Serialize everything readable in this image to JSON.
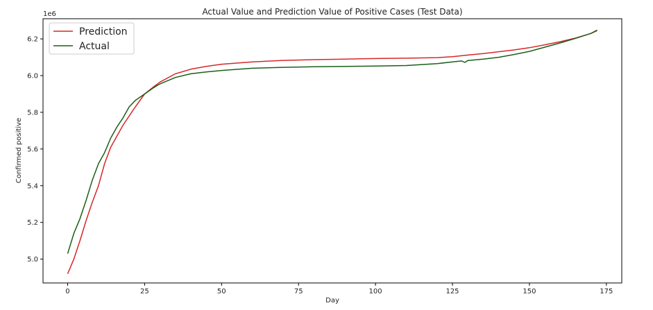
{
  "chart_data": {
    "type": "line",
    "title": "Actual Value and Prediction Value of Positive Cases (Test Data)",
    "xlabel": "Day",
    "ylabel": "Confirmed positive",
    "y_offset_text": "1e6",
    "xlim": [
      -8,
      180
    ],
    "ylim": [
      4.87,
      6.31
    ],
    "x_ticks": [
      0,
      25,
      50,
      75,
      100,
      125,
      150,
      175
    ],
    "y_ticks": [
      5.0,
      5.2,
      5.4,
      5.6,
      5.8,
      6.0,
      6.2
    ],
    "x_tick_labels": [
      "0",
      "25",
      "50",
      "75",
      "100",
      "125",
      "150",
      "175"
    ],
    "y_tick_labels": [
      "5.0",
      "5.2",
      "5.4",
      "5.6",
      "5.8",
      "6.0",
      "6.2"
    ],
    "grid": false,
    "legend_position": "top-left",
    "series": [
      {
        "name": "Prediction",
        "color": "#d62728",
        "points": [
          [
            0,
            4.92
          ],
          [
            2,
            5.0
          ],
          [
            4,
            5.1
          ],
          [
            6,
            5.21
          ],
          [
            8,
            5.31
          ],
          [
            10,
            5.4
          ],
          [
            12,
            5.52
          ],
          [
            14,
            5.61
          ],
          [
            16,
            5.67
          ],
          [
            18,
            5.73
          ],
          [
            20,
            5.78
          ],
          [
            22,
            5.83
          ],
          [
            25,
            5.9
          ],
          [
            28,
            5.94
          ],
          [
            30,
            5.965
          ],
          [
            35,
            6.01
          ],
          [
            40,
            6.035
          ],
          [
            45,
            6.05
          ],
          [
            50,
            6.062
          ],
          [
            60,
            6.075
          ],
          [
            70,
            6.083
          ],
          [
            80,
            6.087
          ],
          [
            90,
            6.09
          ],
          [
            100,
            6.093
          ],
          [
            110,
            6.095
          ],
          [
            120,
            6.098
          ],
          [
            125,
            6.103
          ],
          [
            130,
            6.112
          ],
          [
            135,
            6.12
          ],
          [
            140,
            6.13
          ],
          [
            145,
            6.14
          ],
          [
            150,
            6.152
          ],
          [
            155,
            6.168
          ],
          [
            160,
            6.185
          ],
          [
            165,
            6.205
          ],
          [
            170,
            6.23
          ],
          [
            172,
            6.245
          ]
        ]
      },
      {
        "name": "Actual",
        "color": "#1a5e1a",
        "points": [
          [
            0,
            5.03
          ],
          [
            2,
            5.14
          ],
          [
            4,
            5.22
          ],
          [
            6,
            5.32
          ],
          [
            8,
            5.43
          ],
          [
            10,
            5.52
          ],
          [
            12,
            5.58
          ],
          [
            14,
            5.66
          ],
          [
            16,
            5.72
          ],
          [
            18,
            5.77
          ],
          [
            20,
            5.83
          ],
          [
            22,
            5.865
          ],
          [
            25,
            5.9
          ],
          [
            28,
            5.935
          ],
          [
            30,
            5.955
          ],
          [
            35,
            5.99
          ],
          [
            40,
            6.01
          ],
          [
            45,
            6.02
          ],
          [
            50,
            6.028
          ],
          [
            60,
            6.04
          ],
          [
            70,
            6.045
          ],
          [
            80,
            6.048
          ],
          [
            90,
            6.05
          ],
          [
            100,
            6.052
          ],
          [
            110,
            6.055
          ],
          [
            120,
            6.065
          ],
          [
            125,
            6.075
          ],
          [
            128,
            6.08
          ],
          [
            129,
            6.072
          ],
          [
            130,
            6.082
          ],
          [
            135,
            6.09
          ],
          [
            140,
            6.1
          ],
          [
            145,
            6.115
          ],
          [
            150,
            6.132
          ],
          [
            155,
            6.155
          ],
          [
            160,
            6.178
          ],
          [
            165,
            6.203
          ],
          [
            170,
            6.23
          ],
          [
            172,
            6.248
          ]
        ]
      }
    ]
  }
}
